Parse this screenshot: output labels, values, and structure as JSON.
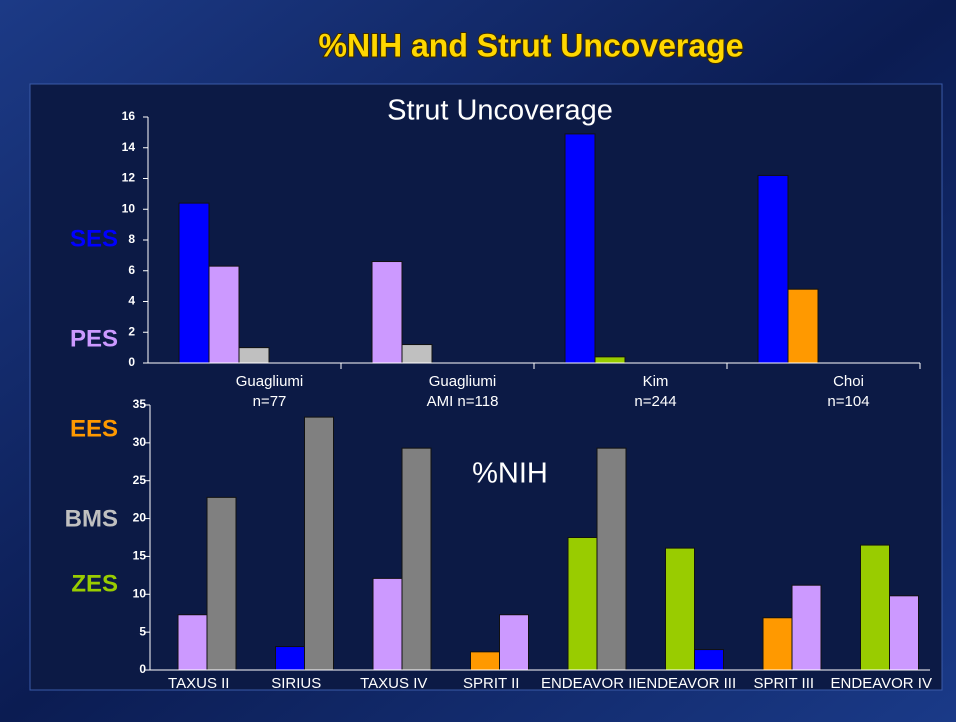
{
  "title": "%NIH and Strut Uncoverage",
  "chart_data": [
    {
      "type": "bar",
      "title": "Strut Uncoverage",
      "categories": [
        [
          "Guagliumi",
          "n=77"
        ],
        [
          "Guagliumi",
          "AMI n=118"
        ],
        [
          "Kim",
          "n=244"
        ],
        [
          "Choi",
          "n=104"
        ]
      ],
      "series": [
        {
          "name": "SES",
          "color": "#0000ff",
          "values": [
            10.4,
            null,
            14.9,
            12.2
          ]
        },
        {
          "name": "PES",
          "color": "#cc99ff",
          "values": [
            6.3,
            6.6,
            null,
            null
          ]
        },
        {
          "name": "EES",
          "color": "#ff9900",
          "values": [
            null,
            null,
            null,
            4.8
          ]
        },
        {
          "name": "ZES",
          "color": "#99cc00",
          "values": [
            null,
            null,
            0.4,
            null
          ]
        },
        {
          "name": "BMS",
          "color": "#c0c0c0",
          "values": [
            1.0,
            1.2,
            null,
            null
          ]
        }
      ],
      "ylim": [
        0,
        16
      ],
      "yticks": [
        0,
        2,
        4,
        6,
        8,
        10,
        12,
        14,
        16
      ]
    },
    {
      "type": "bar",
      "title": "%NIH",
      "categories": [
        "TAXUS II",
        "SIRIUS",
        "TAXUS IV",
        "SPRIT II",
        "ENDEAVOR II",
        "ENDEAVOR III",
        "SPRIT III",
        "ENDEAVOR IV"
      ],
      "series": [
        {
          "color": "#99cc00",
          "values": [
            null,
            null,
            null,
            null,
            17.5,
            16.1,
            null,
            16.5
          ]
        },
        {
          "color": "#ff9900",
          "values": [
            null,
            null,
            null,
            2.4,
            null,
            null,
            6.9,
            null
          ]
        },
        {
          "color": "#0000ff",
          "values": [
            null,
            3.1,
            null,
            null,
            null,
            2.7,
            null,
            null
          ]
        },
        {
          "color": "#cc99ff",
          "values": [
            7.3,
            null,
            12.1,
            7.3,
            null,
            null,
            11.2,
            9.8
          ]
        },
        {
          "color": "#808080",
          "values": [
            22.8,
            33.4,
            29.3,
            null,
            29.3,
            null,
            null,
            null
          ]
        }
      ],
      "ylim": [
        0,
        35
      ],
      "yticks": [
        0,
        5,
        10,
        15,
        20,
        25,
        30,
        35
      ]
    }
  ]
}
